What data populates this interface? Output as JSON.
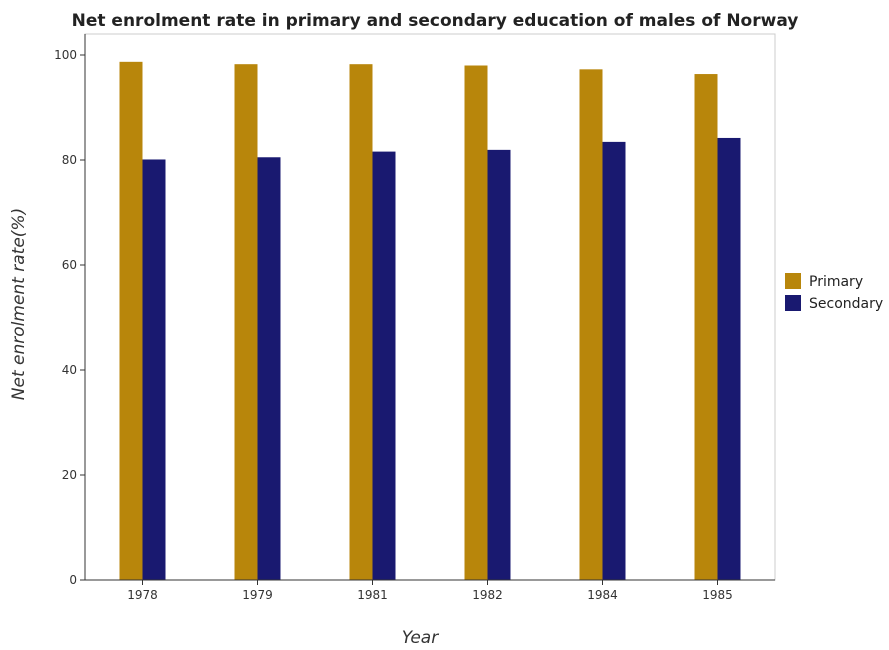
{
  "chart_data": {
    "type": "bar",
    "title": "Net enrolment rate in primary and secondary education of males of Norway",
    "xlabel": "Year",
    "ylabel": "Net enrolment rate(%)",
    "categories": [
      "1978",
      "1979",
      "1981",
      "1982",
      "1984",
      "1985"
    ],
    "series": [
      {
        "name": "Primary",
        "color": "#b8860b",
        "values": [
          98.7,
          98.25,
          98.25,
          98.0,
          97.27,
          96.37
        ]
      },
      {
        "name": "Secondary",
        "color": "#191970",
        "values": [
          80.1,
          80.52,
          81.6,
          81.93,
          83.45,
          84.2
        ]
      }
    ],
    "ylim": [
      0,
      104
    ],
    "yticks": [
      0,
      20,
      40,
      60,
      80,
      100
    ],
    "grid": false,
    "legend_position": "right"
  }
}
